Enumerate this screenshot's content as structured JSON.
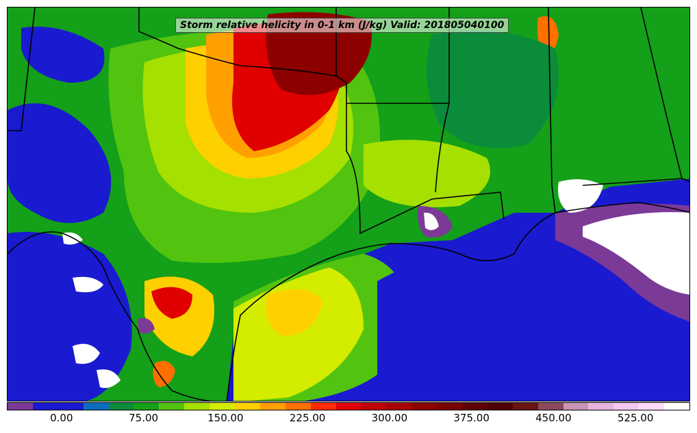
{
  "map": {
    "title": "Storm relative helicity in 0-1 km (J/kg) Valid: 201805040100"
  },
  "legend": {
    "colors": [
      "#7b3a96",
      "#1a1ad0",
      "#1a1ad0",
      "#0b6dc0",
      "#0a8c3a",
      "#14a018",
      "#52c410",
      "#a6e000",
      "#d4ec00",
      "#ffd000",
      "#ffa000",
      "#ff7000",
      "#ff2a00",
      "#e00000",
      "#c00000",
      "#a80000",
      "#8c0000",
      "#780000",
      "#600000",
      "#500000",
      "#6a1414",
      "#8a4a5a",
      "#c896b4",
      "#e8b4e0",
      "#f4c8f0",
      "#ffdcff",
      "#ffffff"
    ],
    "ticks": [
      {
        "label": "0.00",
        "frac": 0.08
      },
      {
        "label": "75.00",
        "frac": 0.2
      },
      {
        "label": "150.00",
        "frac": 0.32
      },
      {
        "label": "225.00",
        "frac": 0.44
      },
      {
        "label": "300.00",
        "frac": 0.56
      },
      {
        "label": "375.00",
        "frac": 0.68
      },
      {
        "label": "450.00",
        "frac": 0.8
      },
      {
        "label": "525.00",
        "frac": 0.92
      }
    ]
  }
}
